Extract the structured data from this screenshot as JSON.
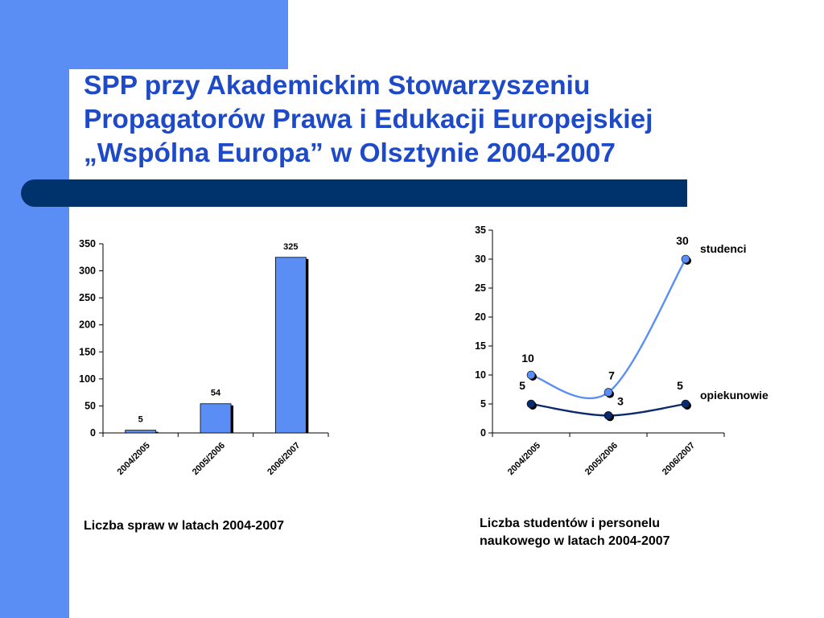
{
  "title": {
    "line1": "SPP przy Akademickim Stowarzyszeniu",
    "line2": "Propagatorów Prawa i Edukacji Europejskiej",
    "line3": "„Wspólna Europa” w Olsztynie 2004-2007"
  },
  "colors": {
    "accent_blue": "#5b8ef5",
    "navy": "#00336b",
    "title_blue": "#1e49c7",
    "series_light": "#5b8ef5",
    "series_dark": "#0a2a6b"
  },
  "chart_data": [
    {
      "type": "bar",
      "categories": [
        "2004/2005",
        "2005/2006",
        "2006/2007"
      ],
      "values": [
        5,
        54,
        325
      ],
      "ylim": [
        0,
        350
      ],
      "yticks": [
        0,
        50,
        100,
        150,
        200,
        250,
        300,
        350
      ],
      "grid": false,
      "data_labels": [
        "5",
        "54",
        "325"
      ]
    },
    {
      "type": "line",
      "categories": [
        "2004/2005",
        "2005/2006",
        "2006/2007"
      ],
      "ylim": [
        0,
        35
      ],
      "yticks": [
        0,
        5,
        10,
        15,
        20,
        25,
        30,
        35
      ],
      "grid": false,
      "series": [
        {
          "name": "studenci",
          "values": [
            10,
            7,
            30
          ],
          "data_labels": [
            "10",
            "7",
            "30"
          ]
        },
        {
          "name": "opiekunowie",
          "values": [
            5,
            3,
            5
          ],
          "data_labels": [
            "5",
            "3",
            "5"
          ]
        }
      ]
    }
  ],
  "captions": {
    "left": "Liczba spraw w latach 2004-2007",
    "right_line1": "Liczba studentów i personelu",
    "right_line2": "naukowego w latach 2004-2007"
  }
}
